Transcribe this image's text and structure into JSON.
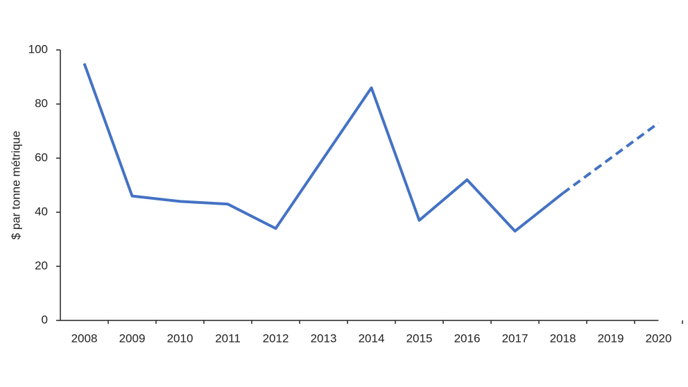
{
  "chart_data": {
    "type": "line",
    "y_label": "$ par tonne métrique",
    "categories": [
      "2008",
      "2009",
      "2010",
      "2011",
      "2012",
      "2013",
      "2014",
      "2015",
      "2016",
      "2017",
      "2018",
      "2019",
      "2020"
    ],
    "series": [
      {
        "color": "#4472c4",
        "dashed": false,
        "values": [
          95,
          46,
          44,
          43,
          34,
          60,
          86,
          37,
          52,
          33,
          47,
          null,
          null
        ]
      },
      {
        "color": "#4472c4",
        "dashed": true,
        "values": [
          null,
          null,
          null,
          null,
          null,
          null,
          null,
          null,
          null,
          null,
          47,
          60,
          73
        ]
      }
    ],
    "ylim": [
      0,
      100
    ],
    "yticks": [
      0,
      20,
      40,
      60,
      80,
      100
    ],
    "grid": false
  }
}
